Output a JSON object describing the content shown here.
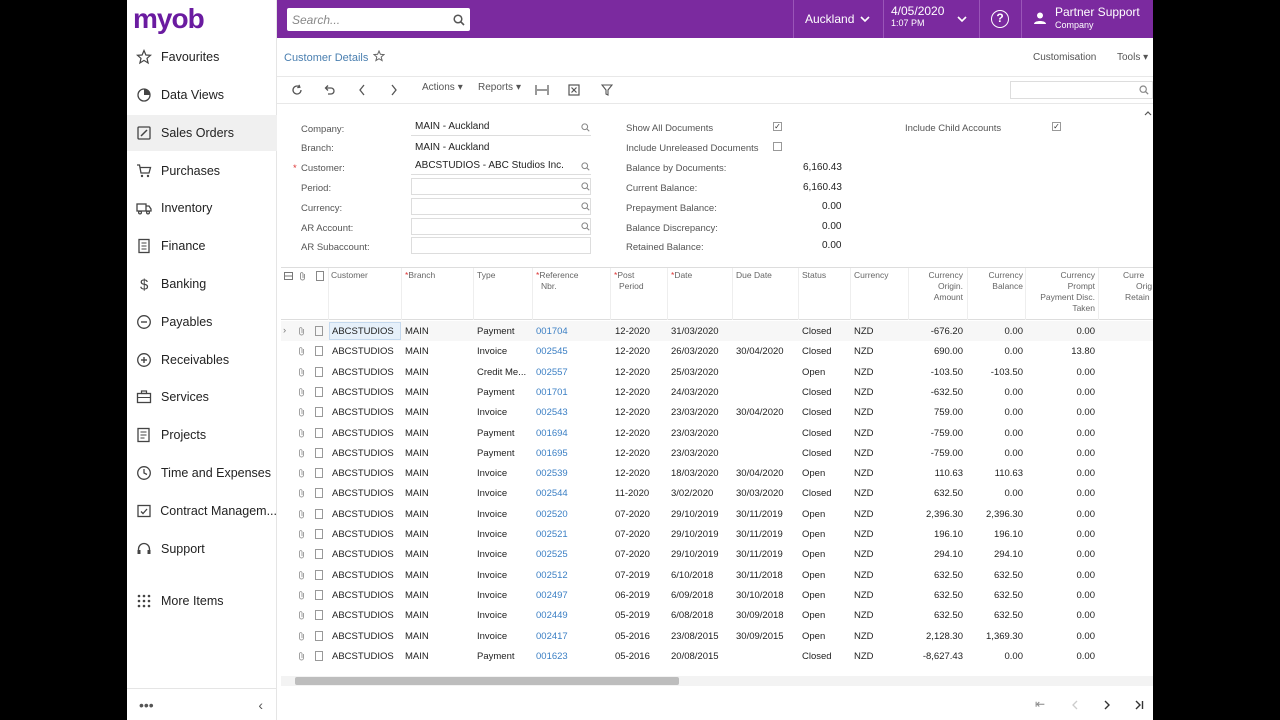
{
  "app": {
    "logo": "myob"
  },
  "sidebar": {
    "items": [
      {
        "label": "Favourites",
        "icon": "star-icon"
      },
      {
        "label": "Data Views",
        "icon": "chart-pie-icon"
      },
      {
        "label": "Sales Orders",
        "icon": "edit-icon"
      },
      {
        "label": "Purchases",
        "icon": "cart-icon"
      },
      {
        "label": "Inventory",
        "icon": "truck-icon"
      },
      {
        "label": "Finance",
        "icon": "document-icon"
      },
      {
        "label": "Banking",
        "icon": "dollar-icon"
      },
      {
        "label": "Payables",
        "icon": "minus-circle-icon"
      },
      {
        "label": "Receivables",
        "icon": "plus-circle-icon"
      },
      {
        "label": "Services",
        "icon": "briefcase-icon"
      },
      {
        "label": "Projects",
        "icon": "list-icon"
      },
      {
        "label": "Time and Expenses",
        "icon": "clock-icon"
      },
      {
        "label": "Contract Managem...",
        "icon": "contract-icon"
      },
      {
        "label": "Support",
        "icon": "headset-icon"
      },
      {
        "label": "More Items",
        "icon": "grid-icon"
      }
    ],
    "bottom_more": "•••",
    "collapse": "‹"
  },
  "topbar": {
    "search_placeholder": "Search...",
    "branch": "Auckland",
    "date": "4/05/2020",
    "time": "1:07 PM",
    "help": "?",
    "user_name": "Partner Support",
    "user_company": "Company"
  },
  "page": {
    "title": "Customer Details",
    "customisation": "Customisation",
    "tools": "Tools"
  },
  "toolbar": {
    "actions": "Actions",
    "reports": "Reports"
  },
  "form": {
    "company_label": "Company:",
    "company_value": "MAIN - Auckland",
    "branch_label": "Branch:",
    "branch_value": "MAIN - Auckland",
    "customer_label": "Customer:",
    "customer_value": "ABCSTUDIOS - ABC Studios Inc.",
    "period_label": "Period:",
    "currency_label": "Currency:",
    "ar_account_label": "AR Account:",
    "ar_subaccount_label": "AR Subaccount:",
    "show_all_label": "Show All Documents",
    "include_unreleased_label": "Include Unreleased Documents",
    "balance_by_docs_label": "Balance by Documents:",
    "balance_by_docs_value": "6,160.43",
    "current_balance_label": "Current Balance:",
    "current_balance_value": "6,160.43",
    "prepayment_label": "Prepayment Balance:",
    "prepayment_value": "0.00",
    "discrepancy_label": "Balance Discrepancy:",
    "discrepancy_value": "0.00",
    "retained_label": "Retained Balance:",
    "retained_value": "0.00",
    "include_child_label": "Include Child Accounts"
  },
  "grid": {
    "headers": {
      "customer": "Customer",
      "branch": "Branch",
      "type": "Type",
      "ref1": "Reference",
      "ref2": "Nbr.",
      "post1": "Post",
      "post2": "Period",
      "date": "Date",
      "due": "Due Date",
      "status": "Status",
      "currency": "Currency",
      "orig1": "Currency",
      "orig2": "Origin.",
      "orig3": "Amount",
      "bal1": "Currency",
      "bal2": "Balance",
      "disc1": "Currency",
      "disc2": "Prompt",
      "disc3": "Payment Disc.",
      "disc4": "Taken",
      "ret1": "Curre",
      "ret2": "Orig",
      "ret3": "Retain"
    },
    "rows": [
      {
        "customer": "ABCSTUDIOS",
        "branch": "MAIN",
        "type": "Payment",
        "ref": "001704",
        "period": "12-2020",
        "date": "31/03/2020",
        "due": "",
        "status": "Closed",
        "currency": "NZD",
        "amount": "-676.20",
        "balance": "0.00",
        "disc": "0.00"
      },
      {
        "customer": "ABCSTUDIOS",
        "branch": "MAIN",
        "type": "Invoice",
        "ref": "002545",
        "period": "12-2020",
        "date": "26/03/2020",
        "due": "30/04/2020",
        "status": "Closed",
        "currency": "NZD",
        "amount": "690.00",
        "balance": "0.00",
        "disc": "13.80"
      },
      {
        "customer": "ABCSTUDIOS",
        "branch": "MAIN",
        "type": "Credit Me...",
        "ref": "002557",
        "period": "12-2020",
        "date": "25/03/2020",
        "due": "",
        "status": "Open",
        "currency": "NZD",
        "amount": "-103.50",
        "balance": "-103.50",
        "disc": "0.00"
      },
      {
        "customer": "ABCSTUDIOS",
        "branch": "MAIN",
        "type": "Payment",
        "ref": "001701",
        "period": "12-2020",
        "date": "24/03/2020",
        "due": "",
        "status": "Closed",
        "currency": "NZD",
        "amount": "-632.50",
        "balance": "0.00",
        "disc": "0.00"
      },
      {
        "customer": "ABCSTUDIOS",
        "branch": "MAIN",
        "type": "Invoice",
        "ref": "002543",
        "period": "12-2020",
        "date": "23/03/2020",
        "due": "30/04/2020",
        "status": "Closed",
        "currency": "NZD",
        "amount": "759.00",
        "balance": "0.00",
        "disc": "0.00"
      },
      {
        "customer": "ABCSTUDIOS",
        "branch": "MAIN",
        "type": "Payment",
        "ref": "001694",
        "period": "12-2020",
        "date": "23/03/2020",
        "due": "",
        "status": "Closed",
        "currency": "NZD",
        "amount": "-759.00",
        "balance": "0.00",
        "disc": "0.00"
      },
      {
        "customer": "ABCSTUDIOS",
        "branch": "MAIN",
        "type": "Payment",
        "ref": "001695",
        "period": "12-2020",
        "date": "23/03/2020",
        "due": "",
        "status": "Closed",
        "currency": "NZD",
        "amount": "-759.00",
        "balance": "0.00",
        "disc": "0.00"
      },
      {
        "customer": "ABCSTUDIOS",
        "branch": "MAIN",
        "type": "Invoice",
        "ref": "002539",
        "period": "12-2020",
        "date": "18/03/2020",
        "due": "30/04/2020",
        "status": "Open",
        "currency": "NZD",
        "amount": "110.63",
        "balance": "110.63",
        "disc": "0.00"
      },
      {
        "customer": "ABCSTUDIOS",
        "branch": "MAIN",
        "type": "Invoice",
        "ref": "002544",
        "period": "11-2020",
        "date": "3/02/2020",
        "due": "30/03/2020",
        "status": "Closed",
        "currency": "NZD",
        "amount": "632.50",
        "balance": "0.00",
        "disc": "0.00"
      },
      {
        "customer": "ABCSTUDIOS",
        "branch": "MAIN",
        "type": "Invoice",
        "ref": "002520",
        "period": "07-2020",
        "date": "29/10/2019",
        "due": "30/11/2019",
        "status": "Open",
        "currency": "NZD",
        "amount": "2,396.30",
        "balance": "2,396.30",
        "disc": "0.00"
      },
      {
        "customer": "ABCSTUDIOS",
        "branch": "MAIN",
        "type": "Invoice",
        "ref": "002521",
        "period": "07-2020",
        "date": "29/10/2019",
        "due": "30/11/2019",
        "status": "Open",
        "currency": "NZD",
        "amount": "196.10",
        "balance": "196.10",
        "disc": "0.00"
      },
      {
        "customer": "ABCSTUDIOS",
        "branch": "MAIN",
        "type": "Invoice",
        "ref": "002525",
        "period": "07-2020",
        "date": "29/10/2019",
        "due": "30/11/2019",
        "status": "Open",
        "currency": "NZD",
        "amount": "294.10",
        "balance": "294.10",
        "disc": "0.00"
      },
      {
        "customer": "ABCSTUDIOS",
        "branch": "MAIN",
        "type": "Invoice",
        "ref": "002512",
        "period": "07-2019",
        "date": "6/10/2018",
        "due": "30/11/2018",
        "status": "Open",
        "currency": "NZD",
        "amount": "632.50",
        "balance": "632.50",
        "disc": "0.00"
      },
      {
        "customer": "ABCSTUDIOS",
        "branch": "MAIN",
        "type": "Invoice",
        "ref": "002497",
        "period": "06-2019",
        "date": "6/09/2018",
        "due": "30/10/2018",
        "status": "Open",
        "currency": "NZD",
        "amount": "632.50",
        "balance": "632.50",
        "disc": "0.00"
      },
      {
        "customer": "ABCSTUDIOS",
        "branch": "MAIN",
        "type": "Invoice",
        "ref": "002449",
        "period": "05-2019",
        "date": "6/08/2018",
        "due": "30/09/2018",
        "status": "Open",
        "currency": "NZD",
        "amount": "632.50",
        "balance": "632.50",
        "disc": "0.00"
      },
      {
        "customer": "ABCSTUDIOS",
        "branch": "MAIN",
        "type": "Invoice",
        "ref": "002417",
        "period": "05-2016",
        "date": "23/08/2015",
        "due": "30/09/2015",
        "status": "Open",
        "currency": "NZD",
        "amount": "2,128.30",
        "balance": "1,369.30",
        "disc": "0.00"
      },
      {
        "customer": "ABCSTUDIOS",
        "branch": "MAIN",
        "type": "Payment",
        "ref": "001623",
        "period": "05-2016",
        "date": "20/08/2015",
        "due": "",
        "status": "Closed",
        "currency": "NZD",
        "amount": "-8,627.43",
        "balance": "0.00",
        "disc": "0.00"
      }
    ]
  },
  "colors": {
    "brand": "#7b2a9f",
    "link": "#3b7fc4"
  }
}
